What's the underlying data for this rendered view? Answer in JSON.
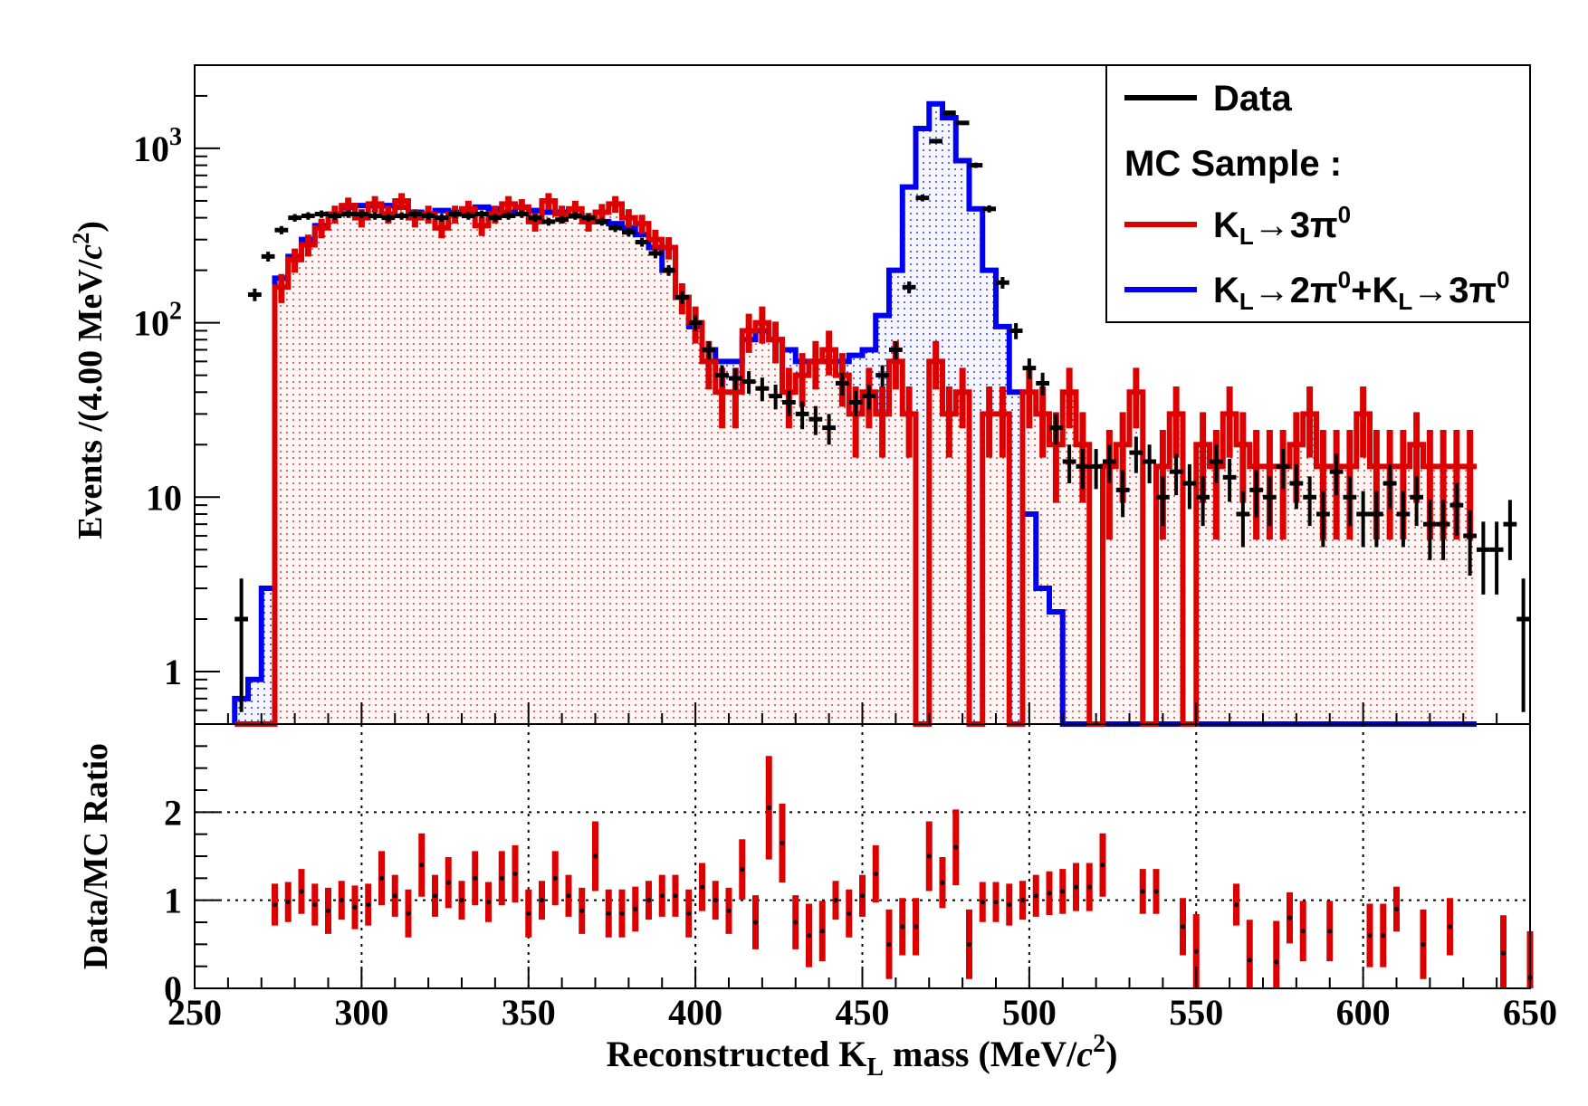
{
  "chart_data": [
    {
      "type": "histogram-log",
      "id": "top",
      "ylabel_main": "Events /(4.00 MeV/",
      "ylabel_c": "c",
      "ylabel_tail": ")",
      "yticks": [
        {
          "value": 1,
          "base": "1",
          "exp": ""
        },
        {
          "value": 10,
          "base": "10",
          "exp": ""
        },
        {
          "value": 100,
          "base": "10",
          "exp": "2"
        },
        {
          "value": 1000,
          "base": "10",
          "exp": "3"
        }
      ],
      "xlim": [
        250,
        650
      ],
      "ylim": [
        0.5,
        3000
      ],
      "bin_width": 4,
      "x_start": 262,
      "mc_total": [
        0.7,
        0.9,
        3,
        180,
        240,
        300,
        360,
        420,
        460,
        470,
        470,
        470,
        460,
        430,
        420,
        440,
        430,
        420,
        460,
        450,
        430,
        460,
        440,
        430,
        430,
        410,
        400,
        380,
        370,
        350,
        320,
        270,
        200,
        140,
        95,
        70,
        60,
        60,
        80,
        90,
        80,
        70,
        60,
        60,
        60,
        60,
        65,
        70,
        110,
        200,
        600,
        1300,
        1800,
        1500,
        850,
        450,
        200,
        95,
        40,
        8,
        3,
        2.2,
        0.45,
        0.45,
        0.45,
        0.45,
        0.45,
        0.45,
        0.45,
        0.45,
        0.45,
        0.45,
        0.45,
        0.45,
        0.45,
        0.45,
        0.45,
        0.45,
        0.45,
        0.45,
        0.45,
        0.45,
        0.45,
        0.45,
        0.45,
        0.45,
        0.45,
        0.45,
        0.45,
        0.45,
        0.45,
        0.45,
        0.45
      ],
      "mc_3pi0": [
        0.1,
        0.1,
        0.5,
        160,
        230,
        280,
        350,
        420,
        470,
        400,
        480,
        420,
        500,
        400,
        420,
        350,
        420,
        450,
        360,
        420,
        480,
        460,
        380,
        500,
        420,
        450,
        380,
        430,
        480,
        400,
        370,
        300,
        270,
        140,
        100,
        60,
        40,
        40,
        90,
        100,
        80,
        40,
        50,
        60,
        70,
        50,
        30,
        40,
        30,
        60,
        30,
        0.3,
        60,
        30,
        40,
        0.3,
        30,
        30,
        0.3,
        40,
        30,
        20,
        40,
        20,
        0.3,
        15,
        20,
        40,
        0.3,
        15,
        30,
        0.3,
        20,
        15,
        30,
        20,
        15,
        15,
        15,
        20,
        30,
        15,
        15,
        15,
        30,
        15,
        15,
        15,
        20,
        15,
        15,
        15,
        15
      ],
      "data": [
        2,
        145,
        240,
        340,
        400,
        410,
        420,
        410,
        420,
        420,
        410,
        400,
        410,
        420,
        410,
        400,
        420,
        410,
        420,
        400,
        410,
        420,
        400,
        380,
        390,
        410,
        400,
        380,
        350,
        330,
        290,
        250,
        200,
        140,
        100,
        70,
        50,
        48,
        46,
        42,
        38,
        35,
        30,
        28,
        25,
        45,
        35,
        38,
        50,
        70,
        160,
        520,
        1100,
        1600,
        1400,
        800,
        450,
        170,
        90,
        55,
        45,
        25,
        16,
        15,
        15,
        16,
        11,
        18,
        16,
        10,
        14,
        12,
        10,
        16,
        13,
        8,
        11,
        10,
        15,
        12,
        10,
        8,
        14,
        10,
        8,
        8,
        12,
        8,
        10,
        7,
        7,
        9,
        6,
        5,
        5,
        7,
        2
      ],
      "legend": {
        "data": "Data",
        "header": "MC Sample :",
        "mc1": {
          "k": "K",
          "sub": "L",
          "rest": "→3π",
          "sup": "0"
        },
        "mc2": {
          "k": "K",
          "sub": "L",
          "rest": "→2π",
          "sup": "0",
          "plus": "+K",
          "sub2": "L",
          "rest2": "→3π",
          "sup2": "0"
        }
      },
      "colors": {
        "data": "#000000",
        "mc_3pi0": "#dd0000",
        "mc_total": "#0000ee"
      }
    },
    {
      "type": "ratio",
      "id": "bottom",
      "ylabel": "Data/MC Ratio",
      "yticks": [
        "0",
        "1",
        "2"
      ],
      "ylim": [
        0,
        3
      ],
      "xticks": [
        "250",
        "300",
        "350",
        "400",
        "450",
        "500",
        "550",
        "600",
        "650"
      ],
      "xlabel_main": "Reconstructed K",
      "xlabel_sub": "L",
      "xlabel_mid": " mass (MeV/",
      "xlabel_c": "c",
      "xlabel_sup": "2",
      "xlabel_tail": ")",
      "points": [
        [
          272,
          0.95
        ],
        [
          276,
          0.98
        ],
        [
          280,
          1.1
        ],
        [
          284,
          0.95
        ],
        [
          288,
          0.88
        ],
        [
          292,
          1.0
        ],
        [
          296,
          0.92
        ],
        [
          300,
          0.95
        ],
        [
          304,
          1.25
        ],
        [
          308,
          1.05
        ],
        [
          312,
          0.85
        ],
        [
          316,
          1.4
        ],
        [
          320,
          1.05
        ],
        [
          324,
          1.2
        ],
        [
          328,
          1.0
        ],
        [
          332,
          1.25
        ],
        [
          336,
          0.98
        ],
        [
          340,
          1.25
        ],
        [
          344,
          1.3
        ],
        [
          348,
          0.85
        ],
        [
          352,
          1.0
        ],
        [
          356,
          1.25
        ],
        [
          360,
          1.05
        ],
        [
          364,
          0.88
        ],
        [
          368,
          1.5
        ],
        [
          372,
          0.85
        ],
        [
          376,
          0.85
        ],
        [
          380,
          0.9
        ],
        [
          384,
          1.0
        ],
        [
          388,
          1.05
        ],
        [
          392,
          1.05
        ],
        [
          396,
          0.85
        ],
        [
          400,
          1.15
        ],
        [
          404,
          1.0
        ],
        [
          408,
          0.88
        ],
        [
          412,
          1.35
        ],
        [
          416,
          0.75
        ],
        [
          420,
          2.05
        ],
        [
          424,
          1.65
        ],
        [
          428,
          0.75
        ],
        [
          432,
          0.6
        ],
        [
          436,
          0.65
        ],
        [
          440,
          1.0
        ],
        [
          444,
          0.85
        ],
        [
          448,
          1.05
        ],
        [
          452,
          1.3
        ],
        [
          456,
          0.5
        ],
        [
          460,
          0.7
        ],
        [
          464,
          0.7
        ],
        [
          468,
          1.5
        ],
        [
          472,
          1.2
        ],
        [
          476,
          1.6
        ],
        [
          480,
          0.5
        ],
        [
          484,
          0.98
        ],
        [
          488,
          0.98
        ],
        [
          492,
          0.95
        ],
        [
          496,
          1.0
        ],
        [
          500,
          1.05
        ],
        [
          504,
          1.08
        ],
        [
          508,
          1.1
        ],
        [
          512,
          1.15
        ],
        [
          516,
          1.15
        ],
        [
          520,
          1.4
        ],
        [
          532,
          1.1
        ],
        [
          536,
          1.1
        ],
        [
          544,
          0.7
        ],
        [
          548,
          0.42
        ],
        [
          560,
          0.95
        ],
        [
          564,
          0.32
        ],
        [
          572,
          0.3
        ],
        [
          576,
          0.8
        ],
        [
          580,
          0.65
        ],
        [
          588,
          0.65
        ],
        [
          600,
          0.6
        ],
        [
          604,
          0.6
        ],
        [
          608,
          0.9
        ],
        [
          616,
          0.5
        ],
        [
          624,
          0.7
        ],
        [
          640,
          0.4
        ],
        [
          648,
          0.12
        ]
      ],
      "colors": {
        "band": "#dd0000",
        "point": "#000000"
      }
    }
  ]
}
